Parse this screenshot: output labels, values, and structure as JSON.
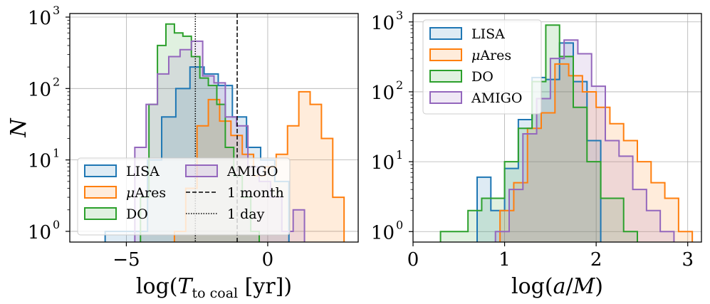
{
  "chart_data": [
    {
      "type": "histogram",
      "panel": "left",
      "xlabel": "log(T_to coal [yr])",
      "ylabel": "N",
      "xlim": [
        -7,
        3.2
      ],
      "ylim_log10": [
        -0.15,
        3.05
      ],
      "yscale": "log",
      "xticks": [
        -5,
        0
      ],
      "xtick_labels": [
        "−5",
        "0"
      ],
      "yticks": [
        1,
        10,
        100,
        1000
      ],
      "ytick_labels": [
        "10",
        "10",
        "10",
        "10"
      ],
      "ytick_exponents": [
        "0",
        "1",
        "2",
        "3"
      ],
      "vlines": [
        {
          "label": "1 month",
          "x": -1.08,
          "style": "dashed"
        },
        {
          "label": "1 day",
          "x": -2.56,
          "style": "dotted"
        }
      ],
      "legend": {
        "location": "lower-left",
        "ncol": 2,
        "entries": [
          {
            "label": "LISA",
            "kind": "hist",
            "series": 0
          },
          {
            "label": "μAres",
            "kind": "hist",
            "series": 1
          },
          {
            "label": "DO",
            "kind": "hist",
            "series": 2
          },
          {
            "label": "AMIGO",
            "kind": "hist",
            "series": 3
          },
          {
            "label": "1 month",
            "kind": "dashed"
          },
          {
            "label": "1 day",
            "kind": "dotted"
          }
        ]
      },
      "series": [
        {
          "name": "LISA",
          "color": "#1f77b4",
          "edges": [
            -5.75,
            -5.25,
            -4.75,
            -4.25,
            -3.75,
            -3.25,
            -2.75,
            -2.25,
            -1.75,
            -1.25,
            -0.75,
            -0.25,
            0.25,
            0.75
          ],
          "counts": [
            1,
            1,
            1,
            10,
            40,
            100,
            200,
            160,
            110,
            40,
            15,
            10,
            5
          ]
        },
        {
          "name": "μAres",
          "color": "#ff7f0e",
          "edges": [
            -3.3,
            -2.9,
            -2.5,
            -2.1,
            -1.7,
            -1.3,
            -0.9,
            -0.5,
            -0.1,
            0.3,
            0.7,
            1.1,
            1.5,
            1.9,
            2.3,
            2.7
          ],
          "counts": [
            1,
            4,
            30,
            70,
            35,
            22,
            12,
            6,
            8,
            12,
            30,
            90,
            60,
            20,
            3
          ]
        },
        {
          "name": "DO",
          "color": "#2ca02c",
          "edges": [
            -4.5,
            -4.2,
            -3.9,
            -3.6,
            -3.3,
            -3.0,
            -2.7,
            -2.4,
            -2.1,
            -1.8,
            -1.5,
            -1.2,
            -0.9,
            -0.6,
            -0.3
          ],
          "counts": [
            3,
            60,
            400,
            800,
            600,
            540,
            280,
            140,
            110,
            60,
            15,
            6,
            3,
            1
          ]
        },
        {
          "name": "AMIGO",
          "color": "#9467bd",
          "edges": [
            -4.7,
            -4.3,
            -3.9,
            -3.5,
            -3.1,
            -2.7,
            -2.3,
            -1.9,
            -1.5,
            -1.1,
            -0.7,
            -0.3,
            0.1,
            0.5,
            0.9,
            1.3
          ],
          "counts": [
            15,
            60,
            160,
            280,
            350,
            460,
            150,
            120,
            40,
            30,
            8,
            5,
            3,
            1,
            2
          ]
        }
      ]
    },
    {
      "type": "histogram",
      "panel": "right",
      "xlabel": "log(a/M)",
      "ylabel": "",
      "xlim": [
        0,
        3.15
      ],
      "ylim_log10": [
        -0.15,
        3.12
      ],
      "yscale": "log",
      "xticks": [
        0,
        1,
        2,
        3
      ],
      "xtick_labels": [
        "0",
        "1",
        "2",
        "3"
      ],
      "yticks": [
        1,
        10,
        100,
        1000
      ],
      "ytick_labels": [
        "10",
        "10",
        "10",
        "10"
      ],
      "ytick_exponents": [
        "0",
        "1",
        "2",
        "3"
      ],
      "legend": {
        "location": "upper-left",
        "ncol": 1,
        "entries": [
          {
            "label": "LISA",
            "kind": "hist",
            "series": 0
          },
          {
            "label": "μAres",
            "kind": "hist",
            "series": 1
          },
          {
            "label": "DO",
            "kind": "hist",
            "series": 2
          },
          {
            "label": "AMIGO",
            "kind": "hist",
            "series": 3
          }
        ]
      },
      "series": [
        {
          "name": "LISA",
          "color": "#1f77b4",
          "edges": [
            0.7,
            0.85,
            1.0,
            1.15,
            1.3,
            1.45,
            1.6,
            1.75,
            1.9,
            2.05
          ],
          "counts": [
            6,
            2,
            8,
            40,
            160,
            150,
            500,
            140,
            20
          ]
        },
        {
          "name": "μAres",
          "color": "#ff7f0e",
          "edges": [
            0.95,
            1.1,
            1.25,
            1.4,
            1.55,
            1.7,
            1.85,
            2.0,
            2.15,
            2.3,
            2.45,
            2.6,
            2.75,
            2.9,
            3.05
          ],
          "counts": [
            2,
            5,
            30,
            50,
            250,
            170,
            100,
            60,
            35,
            20,
            10,
            5,
            3,
            1
          ]
        },
        {
          "name": "DO",
          "color": "#2ca02c",
          "edges": [
            0.3,
            0.6,
            0.75,
            1.0,
            1.15,
            1.3,
            1.45,
            1.6,
            1.75,
            1.9,
            2.05,
            2.3,
            2.45
          ],
          "counts": [
            1,
            2,
            3,
            10,
            30,
            140,
            900,
            320,
            60,
            10,
            3,
            1
          ]
        },
        {
          "name": "AMIGO",
          "color": "#9467bd",
          "edges": [
            0.9,
            1.05,
            1.2,
            1.35,
            1.5,
            1.65,
            1.8,
            1.95,
            2.1,
            2.25,
            2.4,
            2.55,
            2.7,
            2.85
          ],
          "counts": [
            1,
            4,
            25,
            80,
            300,
            550,
            350,
            120,
            20,
            12,
            4,
            2,
            1
          ]
        }
      ]
    }
  ]
}
